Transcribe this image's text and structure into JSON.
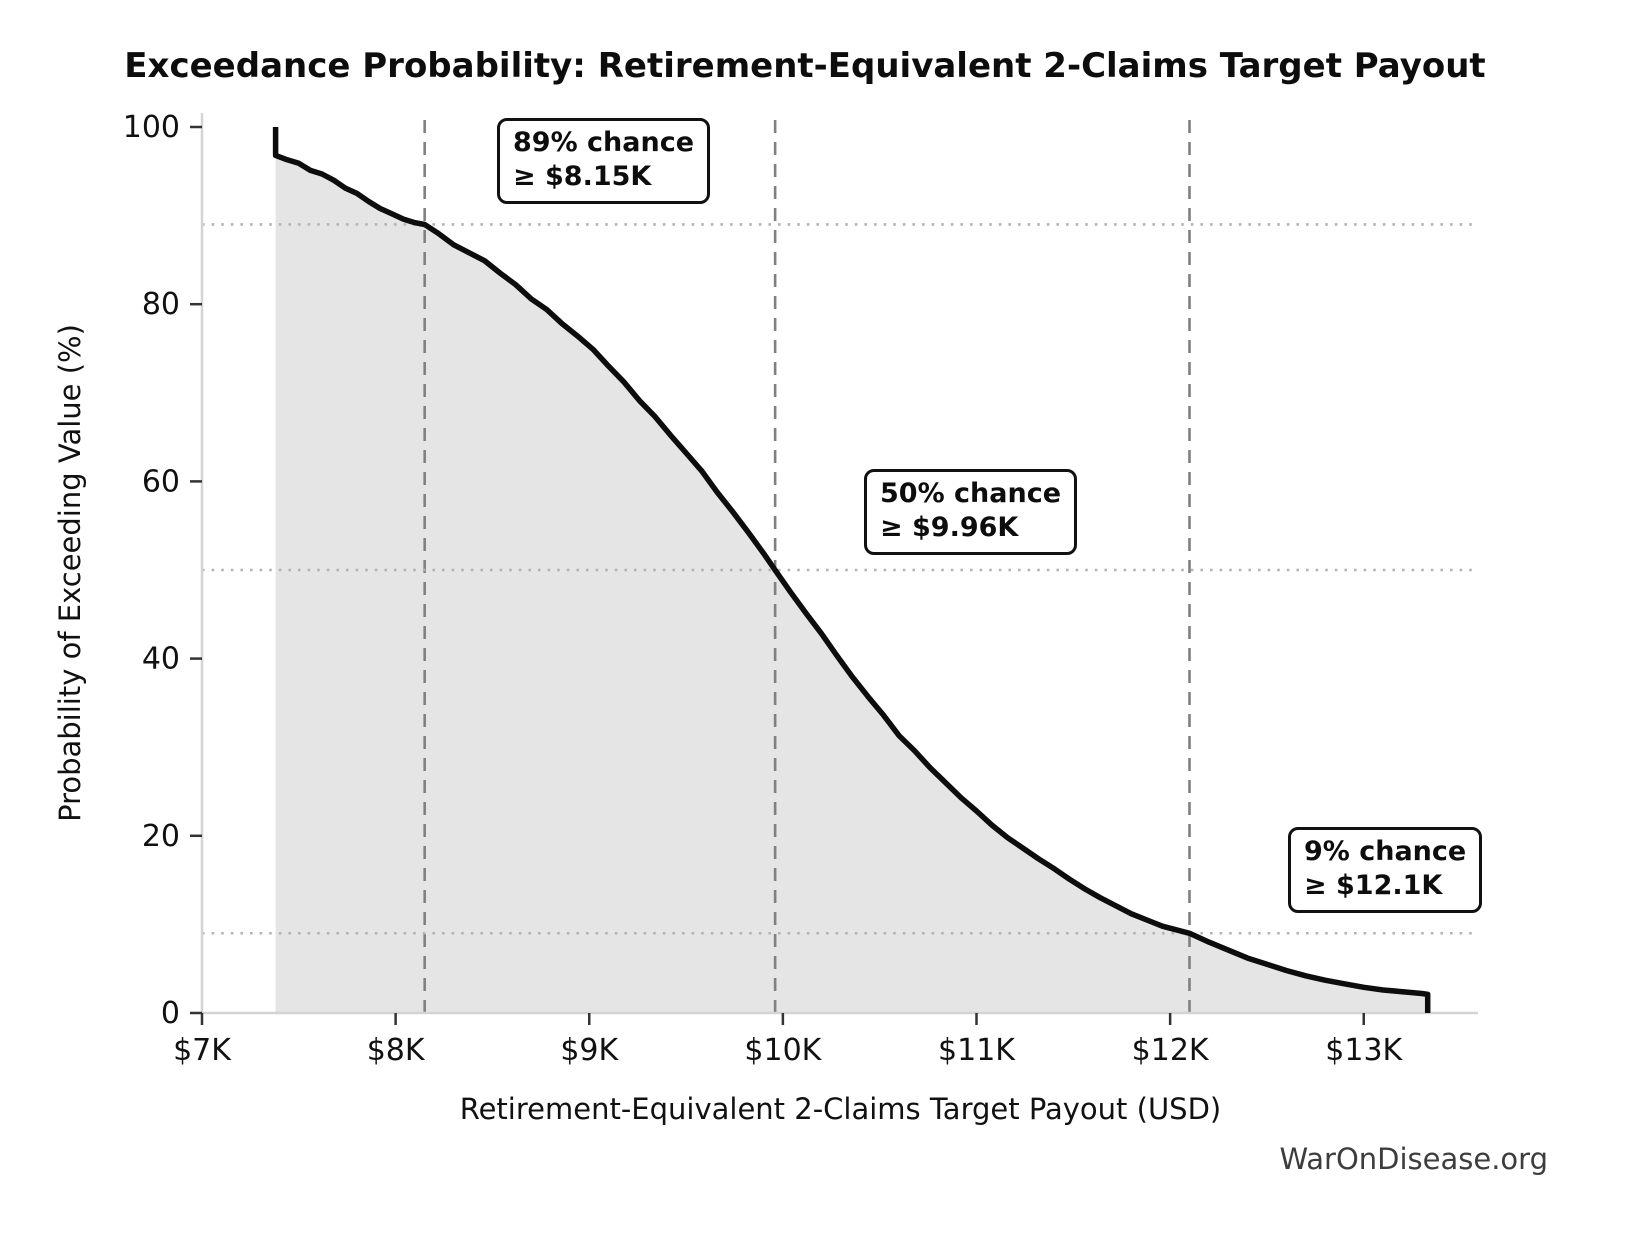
{
  "chart_data": {
    "type": "line",
    "title": "Exceedance Probability: Retirement-Equivalent 2-Claims Target Payout",
    "xlabel": "Retirement-Equivalent 2-Claims Target Payout (USD)",
    "ylabel": "Probability of Exceeding Value (%)",
    "watermark": "WarOnDisease.org",
    "xlim": [
      7.0,
      13.59
    ],
    "ylim": [
      0,
      100
    ],
    "grid": "dotted horizontal at annotation probabilities, dashed vertical at annotation values",
    "legend": "none",
    "x_ticks": [
      {
        "value": 7,
        "label": "$7K"
      },
      {
        "value": 8,
        "label": "$8K"
      },
      {
        "value": 9,
        "label": "$9K"
      },
      {
        "value": 10,
        "label": "$10K"
      },
      {
        "value": 11,
        "label": "$11K"
      },
      {
        "value": 12,
        "label": "$12K"
      },
      {
        "value": 13,
        "label": "$13K"
      }
    ],
    "y_ticks": [
      {
        "value": 0,
        "label": "0"
      },
      {
        "value": 20,
        "label": "20"
      },
      {
        "value": 40,
        "label": "40"
      },
      {
        "value": 60,
        "label": "60"
      },
      {
        "value": 80,
        "label": "80"
      },
      {
        "value": 100,
        "label": "100"
      }
    ],
    "annotations": [
      {
        "pct": 89,
        "value": 8.15,
        "line1": "89% chance",
        "line2": "≥ $8.15K"
      },
      {
        "pct": 50,
        "value": 9.96,
        "line1": "50% chance",
        "line2": "≥ $9.96K"
      },
      {
        "pct": 9,
        "value": 12.1,
        "line1": "9% chance",
        "line2": "≥ $12.1K"
      }
    ],
    "curve_points_value_k_vs_pct": [
      [
        7.38,
        100
      ],
      [
        7.38,
        96.8
      ],
      [
        7.44,
        96.3
      ],
      [
        7.5,
        95.9
      ],
      [
        7.56,
        95.1
      ],
      [
        7.62,
        94.7
      ],
      [
        7.68,
        94.0
      ],
      [
        7.74,
        93.1
      ],
      [
        7.8,
        92.5
      ],
      [
        7.86,
        91.6
      ],
      [
        7.92,
        90.8
      ],
      [
        7.98,
        90.2
      ],
      [
        8.04,
        89.6
      ],
      [
        8.1,
        89.2
      ],
      [
        8.15,
        89.0
      ],
      [
        8.22,
        88.0
      ],
      [
        8.3,
        86.7
      ],
      [
        8.38,
        85.8
      ],
      [
        8.46,
        84.9
      ],
      [
        8.54,
        83.5
      ],
      [
        8.62,
        82.2
      ],
      [
        8.7,
        80.6
      ],
      [
        8.78,
        79.4
      ],
      [
        8.86,
        77.8
      ],
      [
        8.94,
        76.4
      ],
      [
        9.02,
        74.9
      ],
      [
        9.1,
        73.0
      ],
      [
        9.18,
        71.2
      ],
      [
        9.26,
        69.1
      ],
      [
        9.34,
        67.3
      ],
      [
        9.42,
        65.2
      ],
      [
        9.5,
        63.2
      ],
      [
        9.58,
        61.2
      ],
      [
        9.66,
        58.8
      ],
      [
        9.74,
        56.6
      ],
      [
        9.82,
        54.3
      ],
      [
        9.9,
        51.9
      ],
      [
        9.96,
        50.0
      ],
      [
        10.04,
        47.5
      ],
      [
        10.12,
        45.1
      ],
      [
        10.2,
        42.8
      ],
      [
        10.28,
        40.3
      ],
      [
        10.36,
        37.9
      ],
      [
        10.44,
        35.7
      ],
      [
        10.52,
        33.6
      ],
      [
        10.6,
        31.3
      ],
      [
        10.68,
        29.6
      ],
      [
        10.76,
        27.7
      ],
      [
        10.84,
        26.0
      ],
      [
        10.92,
        24.3
      ],
      [
        11.0,
        22.8
      ],
      [
        11.08,
        21.2
      ],
      [
        11.16,
        19.8
      ],
      [
        11.24,
        18.6
      ],
      [
        11.32,
        17.4
      ],
      [
        11.4,
        16.3
      ],
      [
        11.48,
        15.1
      ],
      [
        11.56,
        14.0
      ],
      [
        11.64,
        13.0
      ],
      [
        11.72,
        12.1
      ],
      [
        11.8,
        11.2
      ],
      [
        11.88,
        10.5
      ],
      [
        11.96,
        9.8
      ],
      [
        12.1,
        9.0
      ],
      [
        12.2,
        8.0
      ],
      [
        12.3,
        7.1
      ],
      [
        12.4,
        6.2
      ],
      [
        12.5,
        5.5
      ],
      [
        12.6,
        4.8
      ],
      [
        12.7,
        4.2
      ],
      [
        12.8,
        3.7
      ],
      [
        12.9,
        3.3
      ],
      [
        13.0,
        2.9
      ],
      [
        13.1,
        2.6
      ],
      [
        13.2,
        2.4
      ],
      [
        13.3,
        2.2
      ],
      [
        13.33,
        2.1
      ],
      [
        13.33,
        0
      ]
    ],
    "colors": {
      "curve": "#0d0d0d",
      "fill": "#e5e5e5",
      "dashed_vline": "#808080",
      "dotted_hline": "#b3b3b3",
      "spine": "#d4d4d4",
      "tick": "#333333",
      "tick_label": "#111111",
      "watermark": "#3d3d3d"
    }
  }
}
